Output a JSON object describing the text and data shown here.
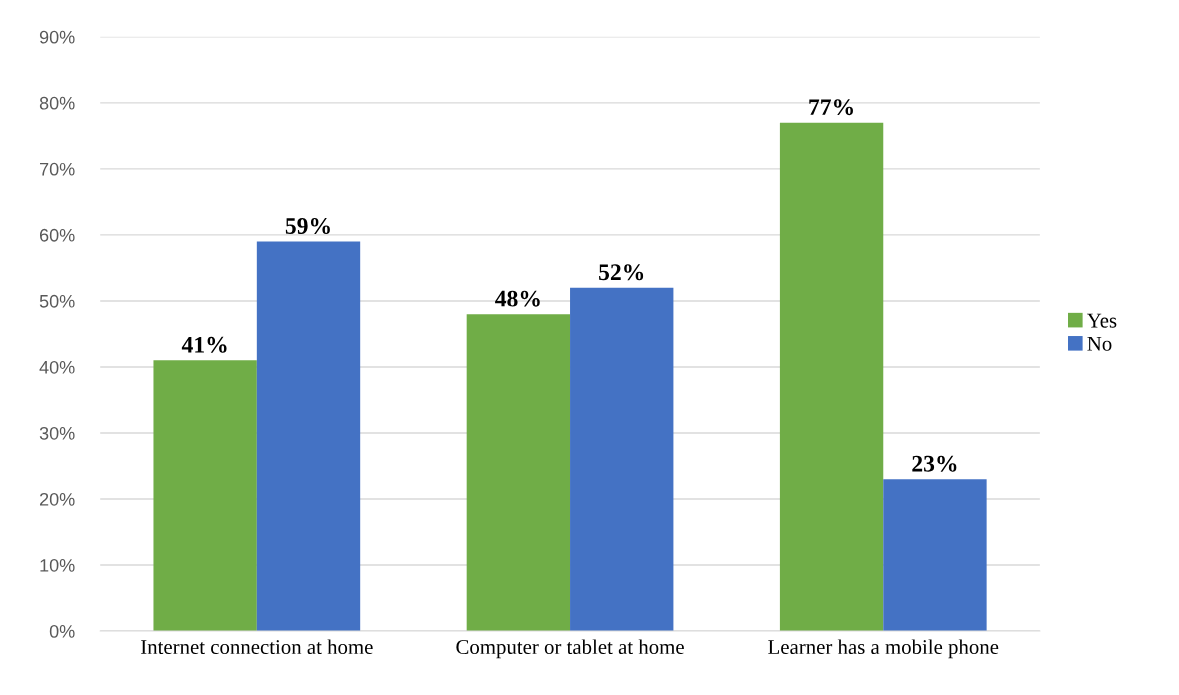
{
  "chart_data": {
    "type": "bar",
    "categories": [
      "Internet connection at home",
      "Computer or tablet at home",
      "Learner has a mobile phone"
    ],
    "series": [
      {
        "name": "Yes",
        "color": "#70ad47",
        "values": [
          41,
          48,
          77
        ],
        "value_labels": [
          "41%",
          "48%",
          "77%"
        ]
      },
      {
        "name": "No",
        "color": "#4472c4",
        "values": [
          59,
          52,
          23
        ],
        "value_labels": [
          "59%",
          "52%",
          "23%"
        ]
      }
    ],
    "ylim": [
      0,
      90
    ],
    "yticks": [
      {
        "value": 0,
        "label": "0%"
      },
      {
        "value": 10,
        "label": "10%"
      },
      {
        "value": 20,
        "label": "20%"
      },
      {
        "value": 30,
        "label": "30%"
      },
      {
        "value": 40,
        "label": "40%"
      },
      {
        "value": 50,
        "label": "50%"
      },
      {
        "value": 60,
        "label": "60%"
      },
      {
        "value": 70,
        "label": "70%"
      },
      {
        "value": 80,
        "label": "80%"
      },
      {
        "value": 90,
        "label": "90%"
      }
    ],
    "grid": "y",
    "legend": "right"
  }
}
